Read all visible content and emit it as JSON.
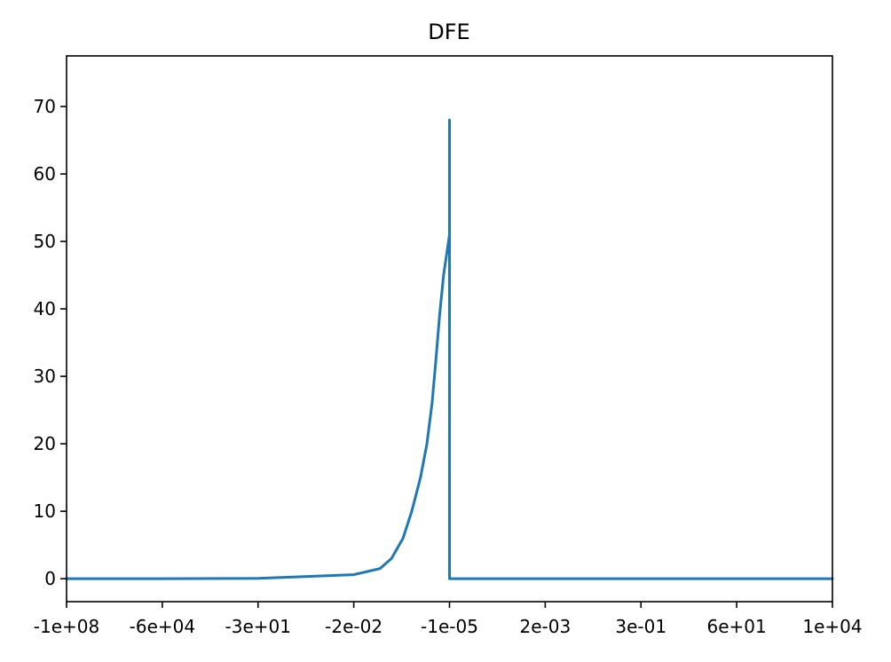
{
  "chart_data": {
    "type": "line",
    "title": "DFE",
    "xlabel": "",
    "ylabel": "",
    "x_axis_scale": "symmetric-log",
    "x_ticks": [
      "-1e+08",
      "-6e+04",
      "-3e+01",
      "-2e-02",
      "-1e-05",
      "2e-03",
      "3e-01",
      "6e+01",
      "1e+04"
    ],
    "y_ticks": [
      0,
      10,
      20,
      30,
      40,
      50,
      60,
      70
    ],
    "ylim": [
      -3.4,
      77.5
    ],
    "grid": false,
    "legend": "none",
    "series": [
      {
        "color": "#1f77b4",
        "points": [
          {
            "x": "-1e+08",
            "y": 0
          },
          {
            "x": "-6e+04",
            "y": 0
          },
          {
            "x": "-3e+01",
            "y": 0.05
          },
          {
            "x": "-2e-02",
            "y": 0.6
          },
          {
            "x": "-2.5e-03",
            "y": 1.5
          },
          {
            "x": "-1e-03",
            "y": 3.0
          },
          {
            "x": "-4e-04",
            "y": 6.0
          },
          {
            "x": "-2e-04",
            "y": 10.0
          },
          {
            "x": "-1e-04",
            "y": 15.0
          },
          {
            "x": "-6e-05",
            "y": 20.0
          },
          {
            "x": "-4e-05",
            "y": 26.0
          },
          {
            "x": "-3e-05",
            "y": 32.0
          },
          {
            "x": "-2.2e-05",
            "y": 39.0
          },
          {
            "x": "-1.6e-05",
            "y": 45.0
          },
          {
            "x": "-1e-05",
            "y": 51.0
          },
          {
            "x": "-1e-05",
            "y": 68.0
          },
          {
            "x": "-1e-05",
            "y": 0
          },
          {
            "x": "2e-03",
            "y": 0
          },
          {
            "x": "3e-01",
            "y": 0
          },
          {
            "x": "6e+01",
            "y": 0
          },
          {
            "x": "1e+04",
            "y": 0
          }
        ]
      }
    ]
  }
}
